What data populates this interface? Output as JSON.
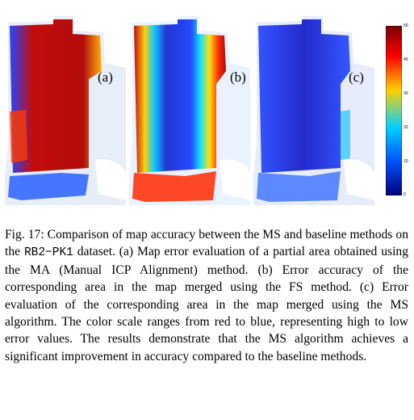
{
  "figure": {
    "panels": [
      {
        "label": "(a)"
      },
      {
        "label": "(b)"
      },
      {
        "label": "(c)"
      }
    ],
    "colorbar": {
      "ticks": [
        "50",
        "40",
        "30",
        "20",
        "10",
        "0"
      ],
      "colors": [
        "#7a0000",
        "#ff0000",
        "#ffd000",
        "#00d0ff",
        "#0050ff",
        "#00007a"
      ]
    }
  },
  "caption": {
    "part1": "Fig. 17: Comparison of map accuracy between the MS and baseline methods on the ",
    "dataset": "RB2−PK1",
    "part2": " dataset. (a) Map error evaluation of a partial area obtained using the MA (Manual ICP Alignment) method. (b) Error accuracy of the corresponding area in the map merged using the FS method. (c) Error evaluation of the corresponding area in the map merged using the MS algorithm. The color scale ranges from red to blue, representing high to low error values. The results demonstrate that the MS algorithm achieves a significant improvement in accuracy compared to the baseline methods."
  }
}
